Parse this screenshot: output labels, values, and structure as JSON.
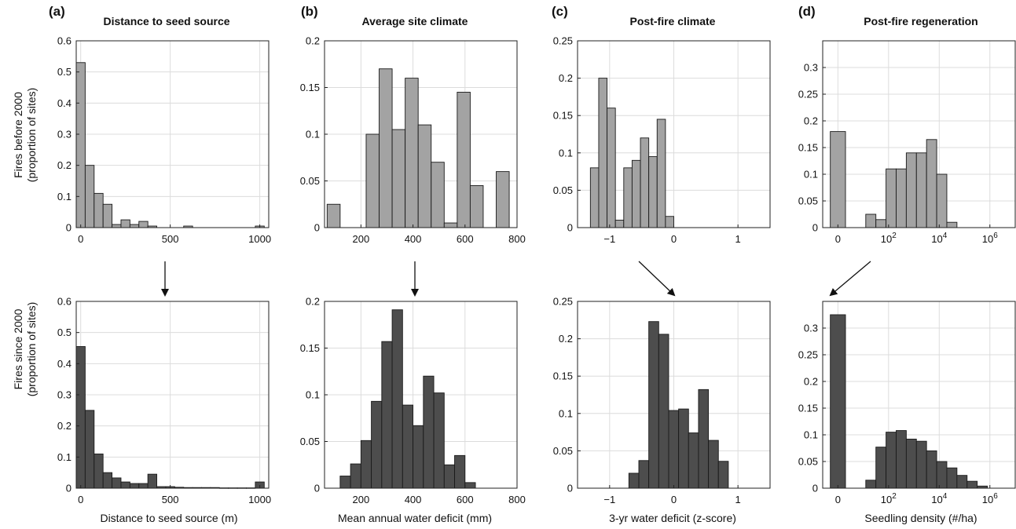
{
  "colors": {
    "top_bar": "#a3a3a3",
    "bottom_bar": "#4d4d4d",
    "grid": "#dcdcdc"
  },
  "row_labels": {
    "top": [
      "Fires before 2000",
      "(proportion of sites)"
    ],
    "bottom": [
      "Fires since 2000",
      "(proportion of sites)"
    ]
  },
  "panels": [
    {
      "letter": "(a)",
      "title": "Distance to seed source",
      "xlabel": "Distance to seed source (m)"
    },
    {
      "letter": "(b)",
      "title": "Average site climate",
      "xlabel": "Mean annual water deficit (mm)"
    },
    {
      "letter": "(c)",
      "title": "Post-fire climate",
      "xlabel": "3-yr water deficit (z-score)"
    },
    {
      "letter": "(d)",
      "title": "Post-fire regeneration",
      "xlabel": "Seedling density (#/ha)"
    }
  ],
  "chart_data": [
    {
      "id": "a-top",
      "type": "bar",
      "panel": "(a)",
      "title": "Distance to seed source",
      "xlim": [
        -25,
        1050
      ],
      "ylim": [
        0,
        0.6
      ],
      "xticks": [
        {
          "v": 0,
          "label": "0"
        },
        {
          "v": 500,
          "label": "500"
        },
        {
          "v": 1000,
          "label": "1000"
        }
      ],
      "yticks": [
        {
          "v": 0,
          "label": "0"
        },
        {
          "v": 0.1,
          "label": "0.1"
        },
        {
          "v": 0.2,
          "label": "0.2"
        },
        {
          "v": 0.3,
          "label": "0.3"
        },
        {
          "v": 0.4,
          "label": "0.4"
        },
        {
          "v": 0.5,
          "label": "0.5"
        },
        {
          "v": 0.6,
          "label": "0.6"
        }
      ],
      "bin_start": -25,
      "bin_width": 50,
      "values": [
        0.53,
        0.2,
        0.11,
        0.075,
        0.01,
        0.025,
        0.01,
        0.02,
        0.005,
        0,
        0,
        0,
        0.005,
        0,
        0,
        0,
        0,
        0,
        0,
        0,
        0.005
      ]
    },
    {
      "id": "a-bottom",
      "type": "bar",
      "panel": "(a)",
      "xlabel": "Distance to seed source (m)",
      "xlim": [
        -25,
        1050
      ],
      "ylim": [
        0,
        0.6
      ],
      "xticks": [
        {
          "v": 0,
          "label": "0"
        },
        {
          "v": 500,
          "label": "500"
        },
        {
          "v": 1000,
          "label": "1000"
        }
      ],
      "yticks": [
        {
          "v": 0,
          "label": "0"
        },
        {
          "v": 0.1,
          "label": "0.1"
        },
        {
          "v": 0.2,
          "label": "0.2"
        },
        {
          "v": 0.3,
          "label": "0.3"
        },
        {
          "v": 0.4,
          "label": "0.4"
        },
        {
          "v": 0.5,
          "label": "0.5"
        },
        {
          "v": 0.6,
          "label": "0.6"
        }
      ],
      "bin_start": -25,
      "bin_width": 50,
      "values": [
        0.455,
        0.25,
        0.11,
        0.05,
        0.033,
        0.02,
        0.015,
        0.015,
        0.045,
        0.005,
        0.005,
        0.003,
        0.002,
        0.002,
        0.002,
        0.002,
        0.001,
        0.001,
        0.001,
        0.001,
        0.02
      ]
    },
    {
      "id": "b-top",
      "type": "bar",
      "panel": "(b)",
      "title": "Average site climate",
      "xlim": [
        60,
        800
      ],
      "ylim": [
        0,
        0.2
      ],
      "xticks": [
        {
          "v": 200,
          "label": "200"
        },
        {
          "v": 400,
          "label": "400"
        },
        {
          "v": 600,
          "label": "600"
        },
        {
          "v": 800,
          "label": "800"
        }
      ],
      "yticks": [
        {
          "v": 0,
          "label": "0"
        },
        {
          "v": 0.05,
          "label": "0.05"
        },
        {
          "v": 0.1,
          "label": "0.1"
        },
        {
          "v": 0.15,
          "label": "0.15"
        },
        {
          "v": 0.2,
          "label": "0.2"
        }
      ],
      "bin_start": 70,
      "bin_width": 50,
      "values": [
        0.025,
        0,
        0,
        0.1,
        0.17,
        0.105,
        0.16,
        0.11,
        0.07,
        0.005,
        0.145,
        0.045,
        0,
        0.06
      ]
    },
    {
      "id": "b-bottom",
      "type": "bar",
      "panel": "(b)",
      "xlabel": "Mean annual water deficit (mm)",
      "xlim": [
        60,
        800
      ],
      "ylim": [
        0,
        0.2
      ],
      "xticks": [
        {
          "v": 200,
          "label": "200"
        },
        {
          "v": 400,
          "label": "400"
        },
        {
          "v": 600,
          "label": "600"
        },
        {
          "v": 800,
          "label": "800"
        }
      ],
      "yticks": [
        {
          "v": 0,
          "label": "0"
        },
        {
          "v": 0.05,
          "label": "0.05"
        },
        {
          "v": 0.1,
          "label": "0.1"
        },
        {
          "v": 0.15,
          "label": "0.15"
        },
        {
          "v": 0.2,
          "label": "0.2"
        }
      ],
      "bin_start": 120,
      "bin_width": 40,
      "values": [
        0.013,
        0.026,
        0.051,
        0.093,
        0.157,
        0.191,
        0.089,
        0.067,
        0.12,
        0.102,
        0.025,
        0.035,
        0.006
      ]
    },
    {
      "id": "c-top",
      "type": "bar",
      "panel": "(c)",
      "title": "Post-fire climate",
      "xlim": [
        -1.5,
        1.5
      ],
      "ylim": [
        0,
        0.25
      ],
      "xticks": [
        {
          "v": -1,
          "label": "−1"
        },
        {
          "v": 0,
          "label": "0"
        },
        {
          "v": 1,
          "label": "1"
        }
      ],
      "yticks": [
        {
          "v": 0,
          "label": "0"
        },
        {
          "v": 0.05,
          "label": "0.05"
        },
        {
          "v": 0.1,
          "label": "0.1"
        },
        {
          "v": 0.15,
          "label": "0.15"
        },
        {
          "v": 0.2,
          "label": "0.2"
        },
        {
          "v": 0.25,
          "label": "0.25"
        }
      ],
      "bin_start": -1.3,
      "bin_width": 0.13,
      "values": [
        0.08,
        0.2,
        0.16,
        0.01,
        0.08,
        0.09,
        0.12,
        0.095,
        0.145,
        0.015
      ]
    },
    {
      "id": "c-bottom",
      "type": "bar",
      "panel": "(c)",
      "xlabel": "3-yr water deficit (z-score)",
      "xlim": [
        -1.5,
        1.5
      ],
      "ylim": [
        0,
        0.25
      ],
      "xticks": [
        {
          "v": -1,
          "label": "−1"
        },
        {
          "v": 0,
          "label": "0"
        },
        {
          "v": 1,
          "label": "1"
        }
      ],
      "yticks": [
        {
          "v": 0,
          "label": "0"
        },
        {
          "v": 0.05,
          "label": "0.05"
        },
        {
          "v": 0.1,
          "label": "0.1"
        },
        {
          "v": 0.15,
          "label": "0.15"
        },
        {
          "v": 0.2,
          "label": "0.2"
        },
        {
          "v": 0.25,
          "label": "0.25"
        }
      ],
      "bin_start": -0.7,
      "bin_width": 0.155,
      "values": [
        0.02,
        0.037,
        0.223,
        0.206,
        0.104,
        0.106,
        0.074,
        0.132,
        0.064,
        0.036
      ]
    },
    {
      "id": "d-top",
      "type": "bar",
      "panel": "(d)",
      "title": "Post-fire regeneration",
      "xlim": [
        -0.6,
        7.0
      ],
      "ylim": [
        0,
        0.35
      ],
      "xticks": [
        {
          "v": 0,
          "label": "0"
        },
        {
          "v": 2,
          "label": "10",
          "sup": "2"
        },
        {
          "v": 4,
          "label": "10",
          "sup": "4"
        },
        {
          "v": 6,
          "label": "10",
          "sup": "6"
        }
      ],
      "yticks": [
        {
          "v": 0,
          "label": "0"
        },
        {
          "v": 0.05,
          "label": "0.05"
        },
        {
          "v": 0.1,
          "label": "0.1"
        },
        {
          "v": 0.15,
          "label": "0.15"
        },
        {
          "v": 0.2,
          "label": "0.2"
        },
        {
          "v": 0.25,
          "label": "0.25"
        },
        {
          "v": 0.3,
          "label": "0.3"
        }
      ],
      "bars": [
        {
          "x0": -0.3,
          "x1": 0.3,
          "value": 0.18
        },
        {
          "x0": 1.1,
          "x1": 1.5,
          "value": 0.025
        },
        {
          "x0": 1.5,
          "x1": 1.9,
          "value": 0.015
        },
        {
          "x0": 1.9,
          "x1": 2.3,
          "value": 0.11
        },
        {
          "x0": 2.3,
          "x1": 2.7,
          "value": 0.11
        },
        {
          "x0": 2.7,
          "x1": 3.1,
          "value": 0.14
        },
        {
          "x0": 3.1,
          "x1": 3.5,
          "value": 0.14
        },
        {
          "x0": 3.5,
          "x1": 3.9,
          "value": 0.165
        },
        {
          "x0": 3.9,
          "x1": 4.3,
          "value": 0.1
        },
        {
          "x0": 4.3,
          "x1": 4.7,
          "value": 0.01
        }
      ]
    },
    {
      "id": "d-bottom",
      "type": "bar",
      "panel": "(d)",
      "xlabel": "Seedling density (#/ha)",
      "xlim": [
        -0.6,
        7.0
      ],
      "ylim": [
        0,
        0.35
      ],
      "xticks": [
        {
          "v": 0,
          "label": "0"
        },
        {
          "v": 2,
          "label": "10",
          "sup": "2"
        },
        {
          "v": 4,
          "label": "10",
          "sup": "4"
        },
        {
          "v": 6,
          "label": "10",
          "sup": "6"
        }
      ],
      "yticks": [
        {
          "v": 0,
          "label": "0"
        },
        {
          "v": 0.05,
          "label": "0.05"
        },
        {
          "v": 0.1,
          "label": "0.1"
        },
        {
          "v": 0.15,
          "label": "0.15"
        },
        {
          "v": 0.2,
          "label": "0.2"
        },
        {
          "v": 0.25,
          "label": "0.25"
        },
        {
          "v": 0.3,
          "label": "0.3"
        }
      ],
      "bars": [
        {
          "x0": -0.3,
          "x1": 0.3,
          "value": 0.325
        },
        {
          "x0": 1.1,
          "x1": 1.5,
          "value": 0.015
        },
        {
          "x0": 1.5,
          "x1": 1.9,
          "value": 0.077
        },
        {
          "x0": 1.9,
          "x1": 2.3,
          "value": 0.105
        },
        {
          "x0": 2.3,
          "x1": 2.7,
          "value": 0.108
        },
        {
          "x0": 2.7,
          "x1": 3.1,
          "value": 0.092
        },
        {
          "x0": 3.1,
          "x1": 3.5,
          "value": 0.088
        },
        {
          "x0": 3.5,
          "x1": 3.9,
          "value": 0.07
        },
        {
          "x0": 3.9,
          "x1": 4.3,
          "value": 0.05
        },
        {
          "x0": 4.3,
          "x1": 4.7,
          "value": 0.038
        },
        {
          "x0": 4.7,
          "x1": 5.1,
          "value": 0.024
        },
        {
          "x0": 5.1,
          "x1": 5.5,
          "value": 0.013
        },
        {
          "x0": 5.5,
          "x1": 5.9,
          "value": 0.004
        }
      ]
    }
  ]
}
